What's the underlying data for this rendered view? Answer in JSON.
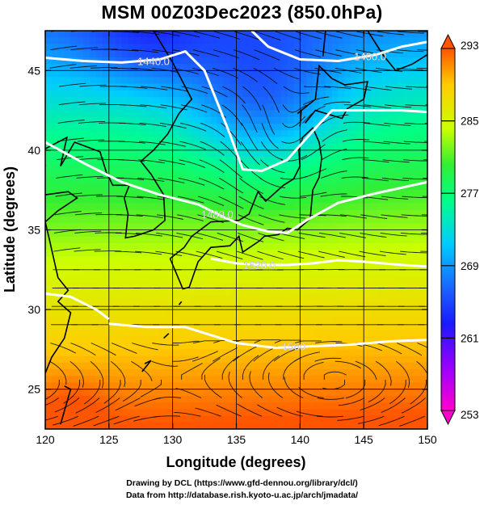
{
  "title": "MSM 00Z03Dec2023 (850.0hPa)",
  "credits": {
    "line1": "Drawing by DCL (https://www.gfd-dennou.org/library/dcl/)",
    "line2": "Data from http://database.rish.kyoto-u.ac.jp/arch/jmadata/"
  },
  "chart_data": {
    "type": "heatmap",
    "description_fields": "temperature shading (K) with streamlines and geopotential height contours (m)",
    "xlabel": "Longitude (degrees)",
    "ylabel": "Latitude (degrees)",
    "xlim": [
      120,
      150
    ],
    "ylim": [
      22.5,
      47.5
    ],
    "x_ticks": [
      120,
      125,
      130,
      135,
      140,
      145,
      150
    ],
    "y_ticks": [
      25,
      30,
      35,
      40,
      45
    ],
    "grid": true,
    "colorbar": {
      "labels": [
        293,
        285,
        277,
        269,
        261,
        253
      ],
      "min": 253,
      "max": 293,
      "colors": [
        "#ff00cc",
        "#9900ff",
        "#1a1aff",
        "#1a66ff",
        "#00ccff",
        "#00ff88",
        "#33ee33",
        "#ccff00",
        "#ffcc00",
        "#ff5500"
      ]
    },
    "contours": [
      {
        "label": "1440.0",
        "points": [
          [
            120,
            45.8
          ],
          [
            123,
            45.6
          ],
          [
            126,
            45.5
          ],
          [
            129,
            45.7
          ],
          [
            131,
            46.2
          ],
          [
            132.5,
            45.0
          ],
          [
            133.5,
            43.0
          ],
          [
            134.5,
            41.0
          ],
          [
            135.5,
            38.8
          ],
          [
            137,
            38.7
          ],
          [
            139,
            39.4
          ],
          [
            141,
            41.2
          ],
          [
            142.5,
            42.5
          ],
          [
            145,
            42.5
          ],
          [
            148,
            42.5
          ],
          [
            150,
            42.4
          ]
        ],
        "label_at": [
          128.5,
          45.6
        ]
      },
      {
        "label": "1400.0",
        "points": [
          [
            136.2,
            47.5
          ],
          [
            137.5,
            46.5
          ],
          [
            140,
            45.7
          ],
          [
            143,
            45.6
          ],
          [
            146,
            46.0
          ],
          [
            148,
            46.5
          ],
          [
            150,
            46.8
          ]
        ],
        "label_at": [
          145.5,
          45.9
        ]
      },
      {
        "label": "1480.0",
        "points": [
          [
            120,
            40.5
          ],
          [
            123,
            39.2
          ],
          [
            126,
            38.0
          ],
          [
            129,
            37.2
          ],
          [
            132,
            36.6
          ],
          [
            134,
            35.8
          ],
          [
            135.5,
            35.3
          ],
          [
            137.5,
            34.9
          ],
          [
            139,
            34.8
          ],
          [
            140.5,
            35.6
          ],
          [
            143,
            36.7
          ],
          [
            146,
            37.3
          ],
          [
            150,
            38.0
          ]
        ],
        "label_at": [
          133.5,
          36.0
        ]
      },
      {
        "label": "1520.0",
        "points": [
          [
            133,
            33.2
          ],
          [
            135,
            32.9
          ],
          [
            137,
            32.8
          ],
          [
            139,
            32.8
          ],
          [
            141,
            32.9
          ],
          [
            143,
            33.1
          ],
          [
            145,
            33.0
          ],
          [
            148,
            32.8
          ],
          [
            150,
            32.7
          ]
        ],
        "label_at": [
          136.8,
          32.8
        ]
      },
      {
        "label": "",
        "points": [
          [
            120,
            31.0
          ],
          [
            122,
            30.8
          ],
          [
            124,
            30.0
          ],
          [
            125,
            29.4
          ]
        ],
        "label_at": null
      },
      {
        "label": "1560",
        "points": [
          [
            125,
            29.1
          ],
          [
            128,
            28.9
          ],
          [
            131,
            28.9
          ],
          [
            133,
            28.4
          ],
          [
            135,
            27.9
          ],
          [
            138,
            27.6
          ],
          [
            141,
            27.7
          ],
          [
            144,
            27.8
          ],
          [
            147,
            28.0
          ],
          [
            150,
            28.1
          ]
        ],
        "label_at": [
          139.5,
          27.7
        ]
      }
    ]
  }
}
